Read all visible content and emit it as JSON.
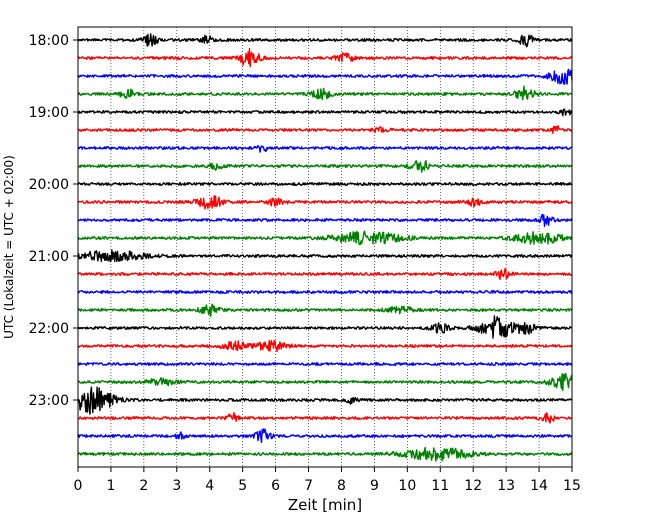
{
  "chart_data": {
    "type": "line",
    "title": "",
    "xlabel": "Zeit  [min]",
    "ylabel": "UTC (Lokalzeit = UTC + 02:00)",
    "xlim": [
      0,
      15
    ],
    "x_ticks": [
      "0",
      "1",
      "2",
      "3",
      "4",
      "5",
      "6",
      "7",
      "8",
      "9",
      "10",
      "11",
      "12",
      "13",
      "14",
      "15"
    ],
    "y_ticks": [
      "18:00",
      "19:00",
      "20:00",
      "21:00",
      "22:00",
      "23:00"
    ],
    "grid": "vertical dotted",
    "trace_interval_minutes": 15,
    "traces_start": "18:00",
    "colors": [
      "#000000",
      "#ff0000",
      "#0000ff",
      "#008000"
    ],
    "series": [
      {
        "start": "18:00",
        "color": "#000000",
        "events": [
          [
            2.2,
            6,
            0.15
          ],
          [
            3.9,
            5,
            0.1
          ],
          [
            13.6,
            6,
            0.15
          ]
        ]
      },
      {
        "start": "18:15",
        "color": "#ff0000",
        "events": [
          [
            5.2,
            9,
            0.2
          ],
          [
            8.1,
            4,
            0.2
          ]
        ]
      },
      {
        "start": "18:30",
        "color": "#0000ff",
        "events": [
          [
            14.8,
            9,
            0.3
          ]
        ]
      },
      {
        "start": "18:45",
        "color": "#008000",
        "events": [
          [
            1.5,
            5,
            0.15
          ],
          [
            7.4,
            5,
            0.2
          ],
          [
            13.6,
            7,
            0.2
          ]
        ]
      },
      {
        "start": "19:00",
        "color": "#000000",
        "events": [
          [
            14.8,
            4,
            0.1
          ]
        ]
      },
      {
        "start": "19:15",
        "color": "#ff0000",
        "events": [
          [
            9.2,
            3,
            0.15
          ],
          [
            14.5,
            4,
            0.1
          ]
        ]
      },
      {
        "start": "19:30",
        "color": "#0000ff",
        "events": [
          [
            5.6,
            4,
            0.1
          ]
        ]
      },
      {
        "start": "19:45",
        "color": "#008000",
        "events": [
          [
            4.2,
            3,
            0.15
          ],
          [
            10.4,
            6,
            0.2
          ]
        ]
      },
      {
        "start": "20:00",
        "color": "#000000",
        "events": []
      },
      {
        "start": "20:15",
        "color": "#ff0000",
        "events": [
          [
            4.0,
            7,
            0.25
          ],
          [
            6.0,
            3,
            0.2
          ],
          [
            12.0,
            3,
            0.2
          ]
        ]
      },
      {
        "start": "20:30",
        "color": "#0000ff",
        "events": [
          [
            14.2,
            6,
            0.15
          ]
        ]
      },
      {
        "start": "20:45",
        "color": "#008000",
        "events": [
          [
            8.8,
            6,
            0.7
          ],
          [
            14.0,
            6,
            0.5
          ]
        ]
      },
      {
        "start": "21:00",
        "color": "#000000",
        "events": [
          [
            1.0,
            5,
            0.7
          ]
        ]
      },
      {
        "start": "21:15",
        "color": "#ff0000",
        "events": [
          [
            12.9,
            5,
            0.15
          ]
        ]
      },
      {
        "start": "21:30",
        "color": "#0000ff",
        "events": []
      },
      {
        "start": "21:45",
        "color": "#008000",
        "events": [
          [
            4.0,
            5,
            0.2
          ],
          [
            9.8,
            3,
            0.3
          ]
        ]
      },
      {
        "start": "22:00",
        "color": "#000000",
        "events": [
          [
            11.0,
            4,
            0.2
          ],
          [
            12.7,
            12,
            0.35
          ],
          [
            13.6,
            5,
            0.2
          ]
        ]
      },
      {
        "start": "22:15",
        "color": "#ff0000",
        "events": [
          [
            4.8,
            4,
            0.3
          ],
          [
            5.9,
            5,
            0.3
          ]
        ]
      },
      {
        "start": "22:30",
        "color": "#0000ff",
        "events": []
      },
      {
        "start": "22:45",
        "color": "#008000",
        "events": [
          [
            2.5,
            3,
            0.3
          ],
          [
            14.8,
            8,
            0.3
          ]
        ]
      },
      {
        "start": "23:00",
        "color": "#000000",
        "events": [
          [
            0.4,
            13,
            0.45
          ],
          [
            8.3,
            4,
            0.1
          ]
        ]
      },
      {
        "start": "23:15",
        "color": "#ff0000",
        "events": [
          [
            4.7,
            5,
            0.1
          ],
          [
            14.3,
            5,
            0.15
          ]
        ]
      },
      {
        "start": "23:30",
        "color": "#0000ff",
        "events": [
          [
            3.1,
            3,
            0.1
          ],
          [
            5.6,
            7,
            0.15
          ]
        ]
      },
      {
        "start": "23:45",
        "color": "#008000",
        "events": [
          [
            10.9,
            6,
            0.7
          ]
        ]
      }
    ]
  }
}
